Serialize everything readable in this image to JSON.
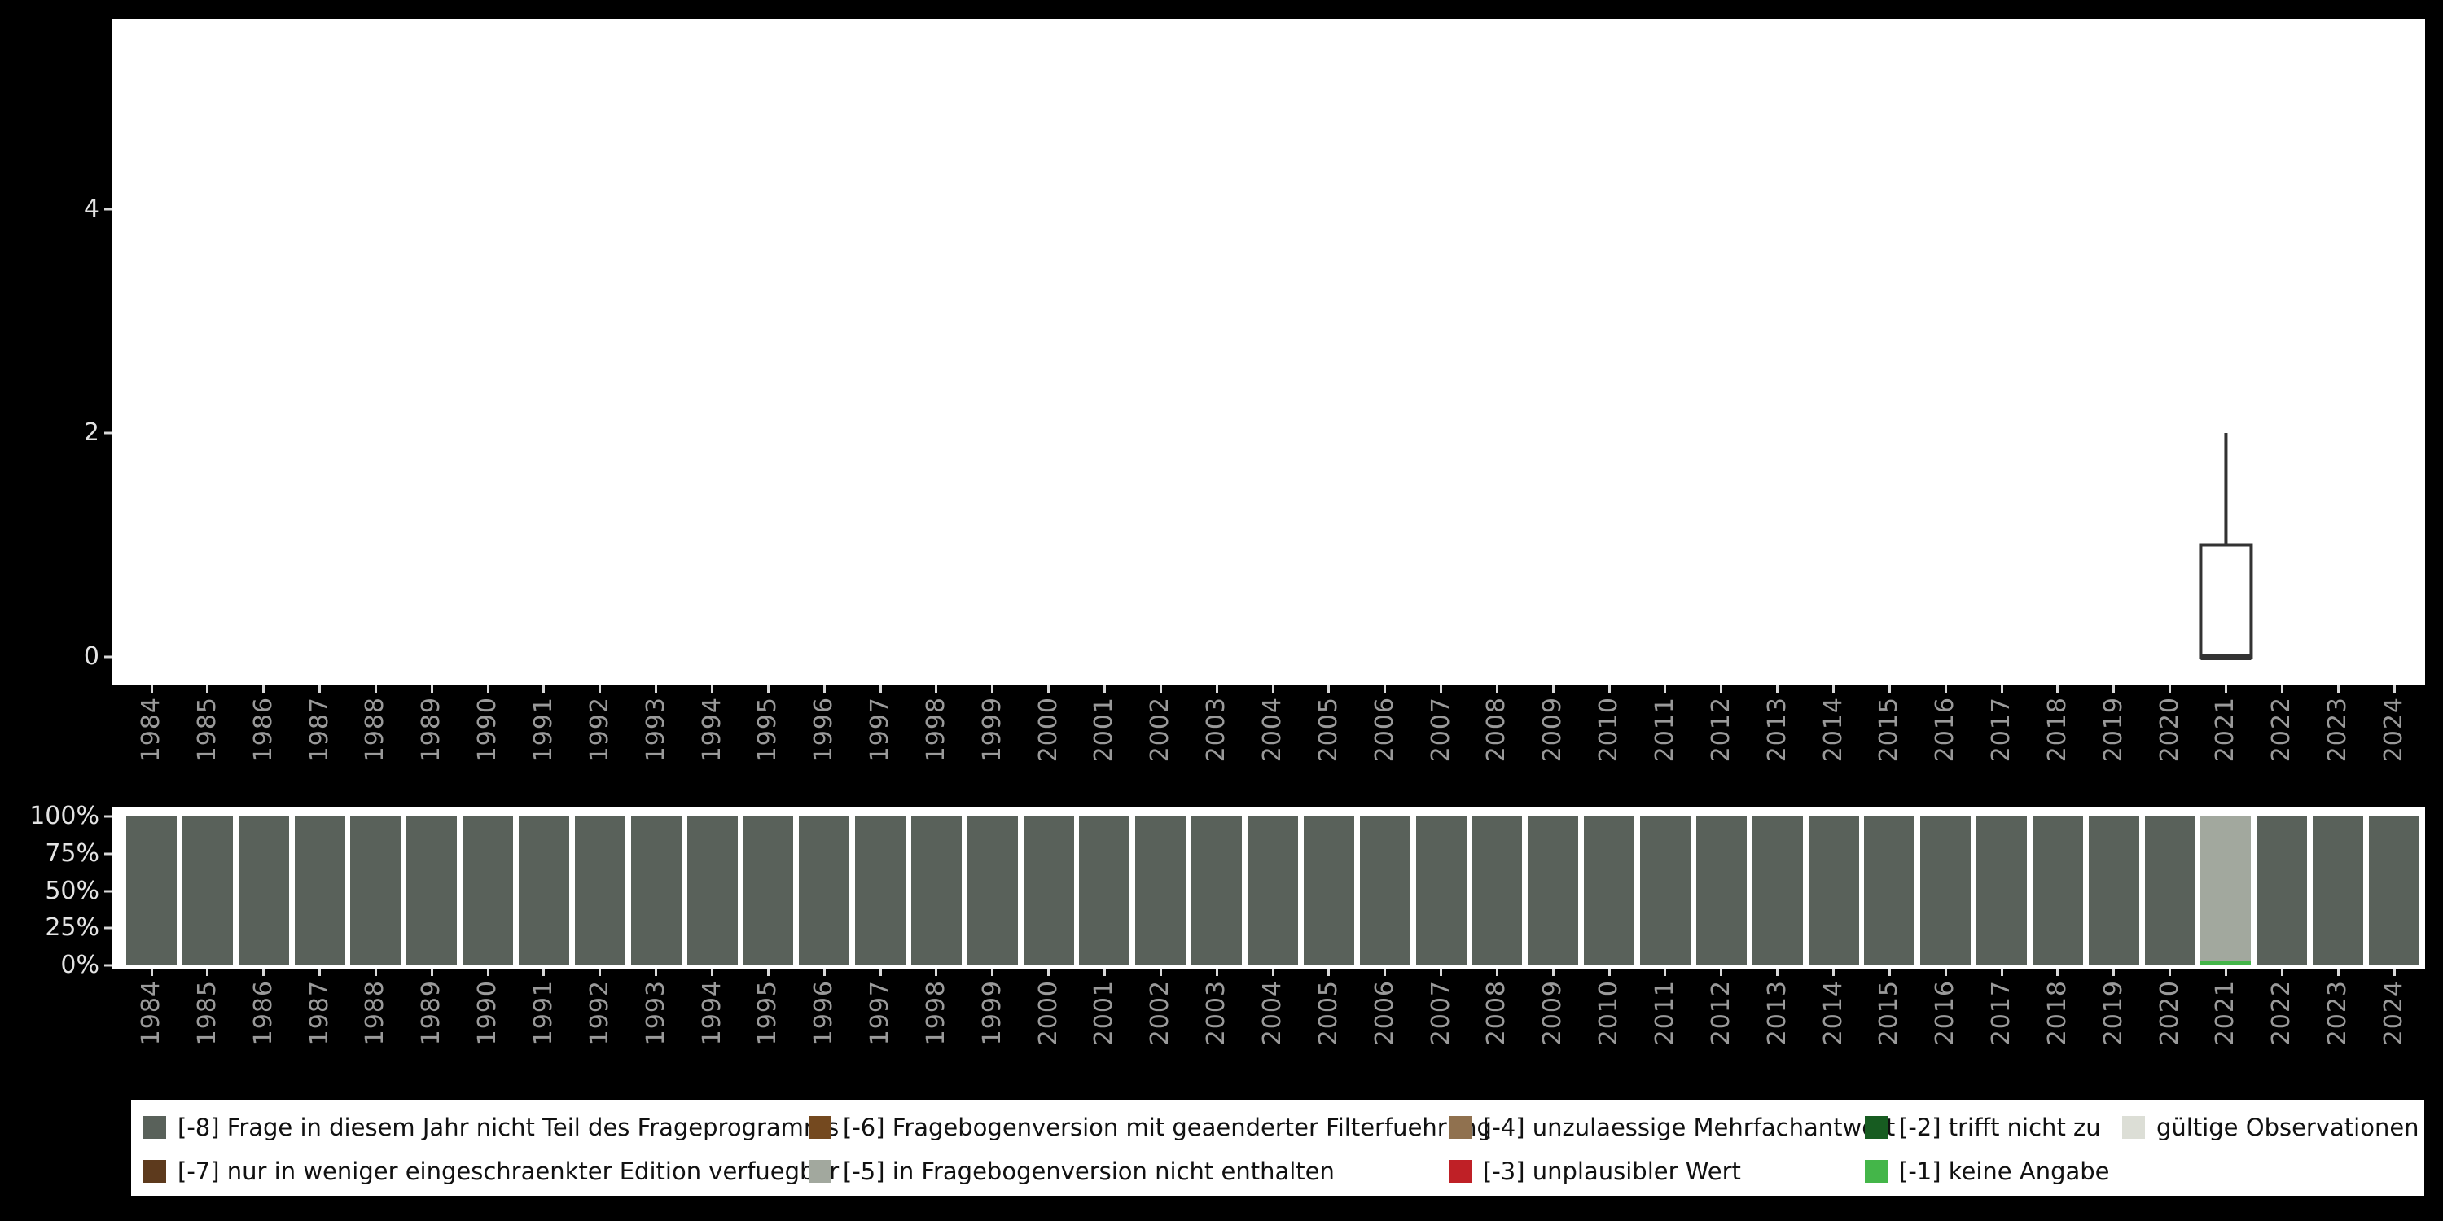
{
  "figure": {
    "background_color": "#000000",
    "panel_color": "#ffffff"
  },
  "top_chart": {
    "yticks": [
      {
        "label": "4",
        "value": 4
      },
      {
        "label": "2",
        "value": 2
      },
      {
        "label": "0",
        "value": 0
      }
    ]
  },
  "bottom_chart": {
    "yticks": [
      {
        "label": "100%",
        "value": 100
      },
      {
        "label": "75%",
        "value": 75
      },
      {
        "label": "50%",
        "value": 50
      },
      {
        "label": "25%",
        "value": 25
      },
      {
        "label": "0%",
        "value": 0
      }
    ]
  },
  "legend": {
    "items": [
      {
        "code": "-8",
        "label": "[-8] Frage in diesem Jahr nicht Teil des Frageprogramms",
        "color": "#59615a",
        "col": 0,
        "row": 0
      },
      {
        "code": "-7",
        "label": "[-7] nur in weniger eingeschraenkter Edition verfuegbar",
        "color": "#5d3a1d",
        "col": 0,
        "row": 1
      },
      {
        "code": "-6",
        "label": "[-6] Fragebogenversion mit geaenderter Filterfuehrung",
        "color": "#74491f",
        "col": 1,
        "row": 0
      },
      {
        "code": "-5",
        "label": "[-5] in Fragebogenversion nicht enthalten",
        "color": "#a2a89e",
        "col": 1,
        "row": 1
      },
      {
        "code": "-4",
        "label": "[-4] unzulaessige Mehrfachantwort",
        "color": "#90714f",
        "col": 2,
        "row": 0
      },
      {
        "code": "-3",
        "label": "[-3] unplausibler Wert",
        "color": "#bf2026",
        "col": 2,
        "row": 1
      },
      {
        "code": "-2",
        "label": "[-2] trifft nicht zu",
        "color": "#175c21",
        "col": 3,
        "row": 0
      },
      {
        "code": "-1",
        "label": "[-1] keine Angabe",
        "color": "#44b649",
        "col": 3,
        "row": 1
      },
      {
        "code": "valid",
        "label": "gültige Observationen",
        "color": "#dcded6",
        "col": 4,
        "row": 0
      }
    ]
  },
  "chart_data": [
    {
      "type": "boxplot",
      "title": "",
      "xlabel": "",
      "ylabel": "",
      "categories": [
        "1984",
        "1985",
        "1986",
        "1987",
        "1988",
        "1989",
        "1990",
        "1991",
        "1992",
        "1993",
        "1994",
        "1995",
        "1996",
        "1997",
        "1998",
        "1999",
        "2000",
        "2001",
        "2002",
        "2003",
        "2004",
        "2005",
        "2006",
        "2007",
        "2008",
        "2009",
        "2010",
        "2011",
        "2012",
        "2013",
        "2014",
        "2015",
        "2016",
        "2017",
        "2018",
        "2019",
        "2020",
        "2021",
        "2022",
        "2023",
        "2024"
      ],
      "ylim": [
        0,
        5.7
      ],
      "yticks": [
        0,
        2,
        4
      ],
      "grid": false,
      "boxes": [
        {
          "category": "2021",
          "min": 0,
          "q1": 0,
          "median": 0,
          "q3": 1,
          "max": 2
        }
      ]
    },
    {
      "type": "bar",
      "stacked": true,
      "unit": "percent",
      "title": "",
      "xlabel": "",
      "ylabel": "",
      "ylim": [
        0,
        100
      ],
      "yticks": [
        "0%",
        "25%",
        "50%",
        "75%",
        "100%"
      ],
      "grid": false,
      "legend_position": "bottom",
      "categories": [
        "1984",
        "1985",
        "1986",
        "1987",
        "1988",
        "1989",
        "1990",
        "1991",
        "1992",
        "1993",
        "1994",
        "1995",
        "1996",
        "1997",
        "1998",
        "1999",
        "2000",
        "2001",
        "2002",
        "2003",
        "2004",
        "2005",
        "2006",
        "2007",
        "2008",
        "2009",
        "2010",
        "2011",
        "2012",
        "2013",
        "2014",
        "2015",
        "2016",
        "2017",
        "2018",
        "2019",
        "2020",
        "2021",
        "2022",
        "2023",
        "2024"
      ],
      "series": [
        {
          "code": "valid",
          "name": "gültige Observationen",
          "color": "#dcded6",
          "values": [
            0,
            0,
            0,
            0,
            0,
            0,
            0,
            0,
            0,
            0,
            0,
            0,
            0,
            0,
            0,
            0,
            0,
            0,
            0,
            0,
            0,
            0,
            0,
            0,
            0,
            0,
            0,
            0,
            0,
            0,
            0,
            0,
            0,
            0,
            0,
            0,
            0,
            0.5,
            0,
            0,
            0
          ]
        },
        {
          "code": "-1",
          "name": "[-1] keine Angabe",
          "color": "#44b649",
          "values": [
            0,
            0,
            0,
            0,
            0,
            0,
            0,
            0,
            0,
            0,
            0,
            0,
            0,
            0,
            0,
            0,
            0,
            0,
            0,
            0,
            0,
            0,
            0,
            0,
            0,
            0,
            0,
            0,
            0,
            0,
            0,
            0,
            0,
            0,
            0,
            0,
            0,
            2.5,
            0,
            0,
            0
          ]
        },
        {
          "code": "-5",
          "name": "[-5] in Fragebogenversion nicht enthalten",
          "color": "#a2a89e",
          "values": [
            0,
            0,
            0,
            0,
            0,
            0,
            0,
            0,
            0,
            0,
            0,
            0,
            0,
            0,
            0,
            0,
            0,
            0,
            0,
            0,
            0,
            0,
            0,
            0,
            0,
            0,
            0,
            0,
            0,
            0,
            0,
            0,
            0,
            0,
            0,
            0,
            0,
            97,
            0,
            0,
            0
          ]
        },
        {
          "code": "-8",
          "name": "[-8] Frage in diesem Jahr nicht Teil des Frageprogramms",
          "color": "#59615a",
          "values": [
            100,
            100,
            100,
            100,
            100,
            100,
            100,
            100,
            100,
            100,
            100,
            100,
            100,
            100,
            100,
            100,
            100,
            100,
            100,
            100,
            100,
            100,
            100,
            100,
            100,
            100,
            100,
            100,
            100,
            100,
            100,
            100,
            100,
            100,
            100,
            100,
            100,
            0,
            100,
            100,
            100
          ]
        }
      ]
    }
  ]
}
